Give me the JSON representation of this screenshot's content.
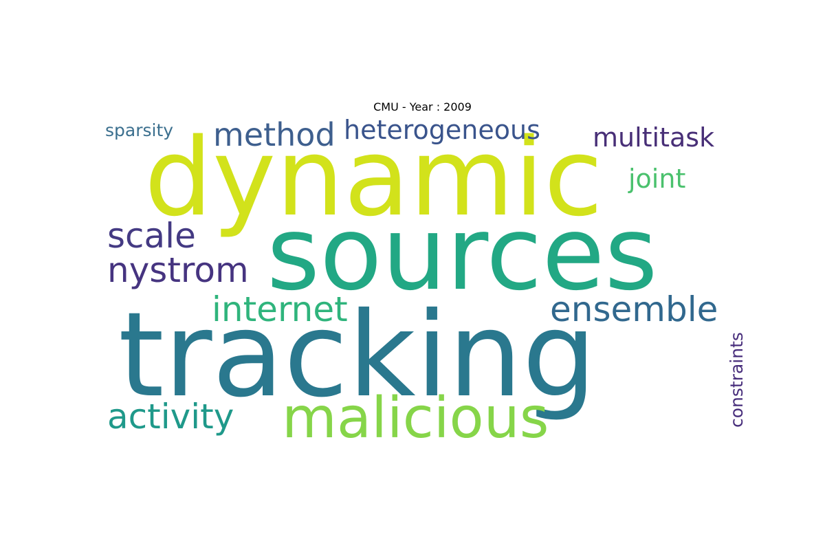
{
  "title": "CMU - Year : 2009",
  "words": [
    {
      "text": "dynamic",
      "color": "#d2e21b"
    },
    {
      "text": "sources",
      "color": "#22a884"
    },
    {
      "text": "tracking",
      "color": "#2a788e"
    },
    {
      "text": "malicious",
      "color": "#86d549"
    },
    {
      "text": "method",
      "color": "#3e5f8e"
    },
    {
      "text": "heterogeneous",
      "color": "#3a548c"
    },
    {
      "text": "sparsity",
      "color": "#3b6f8e"
    },
    {
      "text": "multitask",
      "color": "#482f77"
    },
    {
      "text": "joint",
      "color": "#4ac16d"
    },
    {
      "text": "scale",
      "color": "#443a83"
    },
    {
      "text": "nystrom",
      "color": "#463480"
    },
    {
      "text": "internet",
      "color": "#2fb47c"
    },
    {
      "text": "ensemble",
      "color": "#31688e"
    },
    {
      "text": "activity",
      "color": "#1f998a"
    },
    {
      "text": "constraints",
      "color": "#472d7b"
    }
  ]
}
